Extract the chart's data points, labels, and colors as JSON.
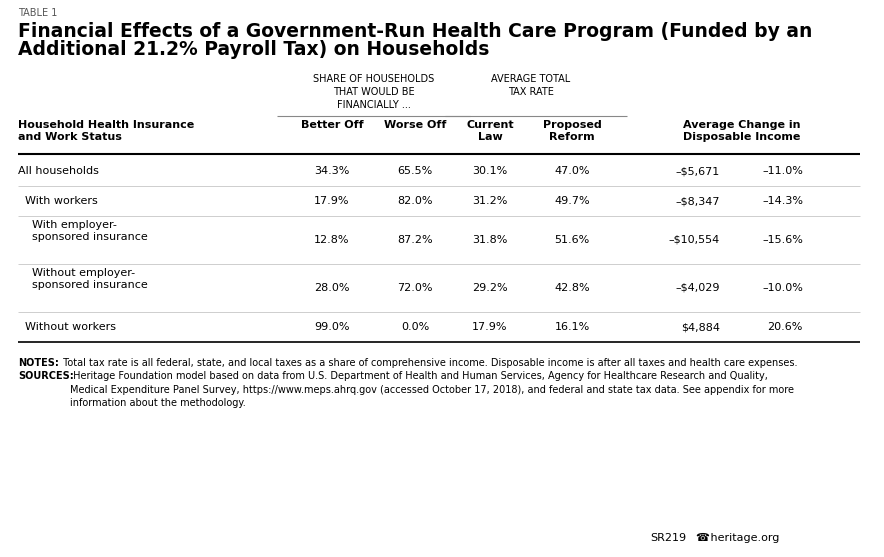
{
  "table_label": "TABLE 1",
  "title_line1": "Financial Effects of a Government-Run Health Care Program (Funded by an",
  "title_line2": "Additional 21.2% Payroll Tax) on Households",
  "col_header_group1": "SHARE OF HOUSEHOLDS\nTHAT WOULD BE\nFINANCIALLY ...",
  "col_header_group2": "AVERAGE TOTAL\nTAX RATE",
  "rows": [
    [
      "All households",
      "34.3%",
      "65.5%",
      "30.1%",
      "47.0%",
      "–$5,671",
      "–11.0%"
    ],
    [
      "  With workers",
      "17.9%",
      "82.0%",
      "31.2%",
      "49.7%",
      "–$8,347",
      "–14.3%"
    ],
    [
      "    With employer-\n    sponsored insurance",
      "12.8%",
      "87.2%",
      "31.8%",
      "51.6%",
      "–$10,554",
      "–15.6%"
    ],
    [
      "    Without employer-\n    sponsored insurance",
      "28.0%",
      "72.0%",
      "29.2%",
      "42.8%",
      "–$4,029",
      "–10.0%"
    ],
    [
      "  Without workers",
      "99.0%",
      "0.0%",
      "17.9%",
      "16.1%",
      "$4,884",
      "20.6%"
    ]
  ],
  "notes_bold": "NOTES:",
  "notes_text": " Total tax rate is all federal, state, and local taxes as a share of comprehensive income. Disposable income is after all taxes and health care expenses.",
  "sources_bold": "SOURCES:",
  "sources_text": " Heritage Foundation model based on data from U.S. Department of Health and Human Services, Agency for Healthcare Research and Quality,\nMedical Expenditure Panel Survey, https://www.meps.ahrq.gov (accessed October 17, 2018), and federal and state tax data. See appendix for more\ninformation about the methodology.",
  "footer_sr": "SR219",
  "footer_phone": "☎",
  "footer_org": " heritage.org",
  "bg_color": "#ffffff",
  "text_color": "#000000"
}
